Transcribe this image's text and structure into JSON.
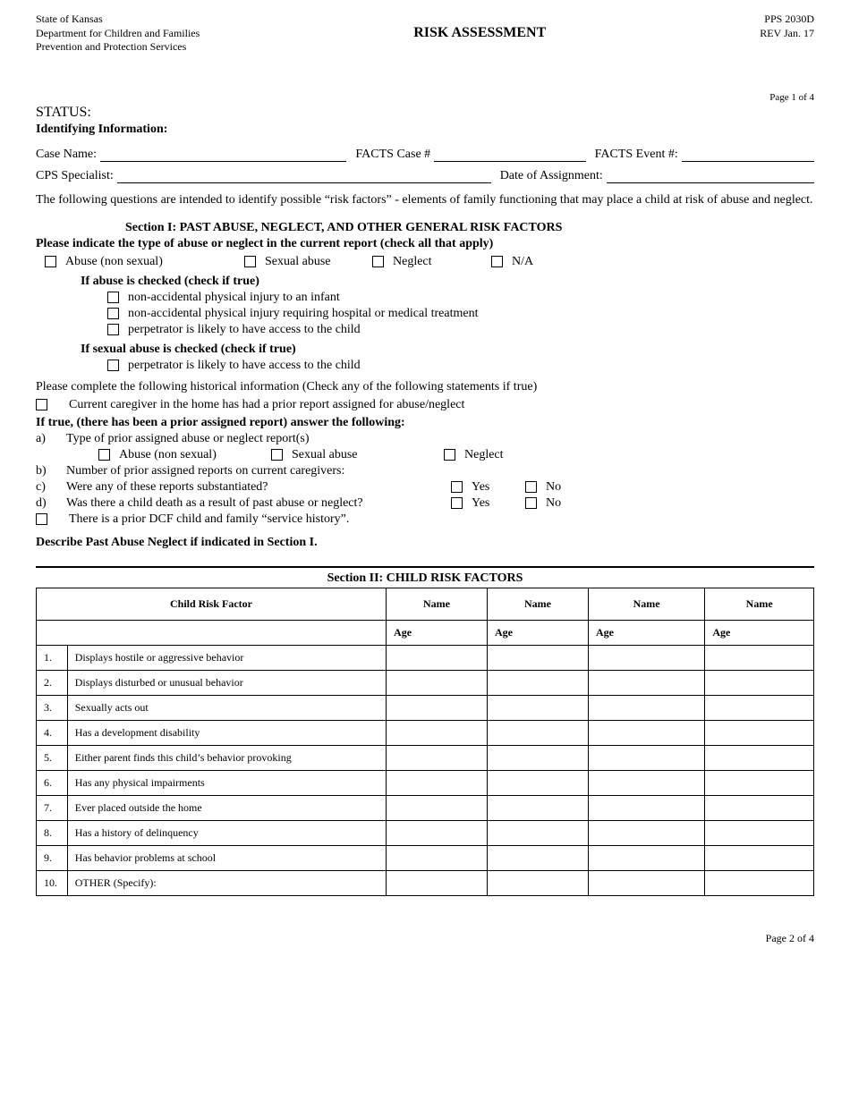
{
  "header": {
    "left_lines": [
      "State of Kansas",
      "Department for Children and Families",
      "Prevention and Protection Services"
    ],
    "title": "RISK ASSESSMENT",
    "right_lines": [
      "PPS 2030D",
      "REV Jan. 17"
    ]
  },
  "page_top": "Page 1 of 4",
  "status_label": "STATUS:",
  "identifying_label": "Identifying Information:",
  "fields_row1": {
    "case_name": "Case Name:",
    "facts_case": "FACTS Case #",
    "facts_event": "FACTS Event #:"
  },
  "fields_row2": {
    "cps": "CPS Specialist:",
    "date_assign": "Date of Assignment:"
  },
  "intro": "The following questions are intended to identify possible “risk factors” - elements of family functioning that may place a child at risk of abuse and neglect.",
  "section1": {
    "title": "Section I:   PAST ABUSE, NEGLECT, AND OTHER GENERAL RISK FACTORS",
    "instr": "Please indicate the type of abuse or neglect in the current report (check all that apply)",
    "types": [
      "Abuse (non sexual)",
      "Sexual abuse",
      "Neglect",
      "N/A"
    ],
    "abuse_sub_title": "If abuse is checked (check if true)",
    "abuse_subs": [
      "non-accidental physical injury to an infant",
      "non-accidental physical injury requiring hospital or medical treatment",
      "perpetrator is likely to have access to the child"
    ],
    "sexual_sub_title": "If sexual abuse is checked (check if true)",
    "sexual_subs": [
      "perpetrator is likely to have access to the child"
    ],
    "hist_instr": "Please complete the following historical information (Check any of the following statements if true)",
    "hist_prior": "Current caregiver in the home has had a prior report assigned for abuse/neglect",
    "hist_if_true": "If true, (there has been a prior assigned report) answer the following:",
    "a_label": "a)",
    "a_text": "Type of prior assigned abuse or neglect report(s)",
    "a_types": [
      "Abuse (non sexual)",
      "Sexual abuse",
      "Neglect"
    ],
    "b_label": "b)",
    "b_text": "Number of prior assigned reports on current caregivers:",
    "c_label": "c)",
    "c_text": "Were any of these reports substantiated?",
    "d_label": "d)",
    "d_text": "Was there a child death as a result of past abuse or neglect?",
    "yes": "Yes",
    "no": "No",
    "service_hist": "There is a prior DCF child and family “service history”.",
    "describe": "Describe Past Abuse Neglect if indicated in Section I."
  },
  "section2": {
    "title": "Section II:  CHILD RISK FACTORS",
    "col_factor": "Child Risk Factor",
    "col_name": "Name",
    "col_age": "Age",
    "rows": [
      {
        "n": "1.",
        "f": "Displays hostile or aggressive behavior"
      },
      {
        "n": "2.",
        "f": "Displays disturbed or unusual behavior"
      },
      {
        "n": "3.",
        "f": "Sexually acts out"
      },
      {
        "n": "4.",
        "f": "Has a development disability"
      },
      {
        "n": "5.",
        "f": "Either parent finds this child’s behavior provoking"
      },
      {
        "n": "6.",
        "f": "Has any physical impairments"
      },
      {
        "n": "7.",
        "f": "Ever placed outside the home"
      },
      {
        "n": "8.",
        "f": "Has a history of delinquency"
      },
      {
        "n": "9.",
        "f": "Has behavior problems at school"
      },
      {
        "n": "10.",
        "f": "OTHER (Specify):"
      }
    ]
  },
  "page_bottom": "Page 2 of 4",
  "layout": {
    "col_widths_pct": [
      4,
      41,
      13,
      13,
      15,
      14
    ]
  }
}
